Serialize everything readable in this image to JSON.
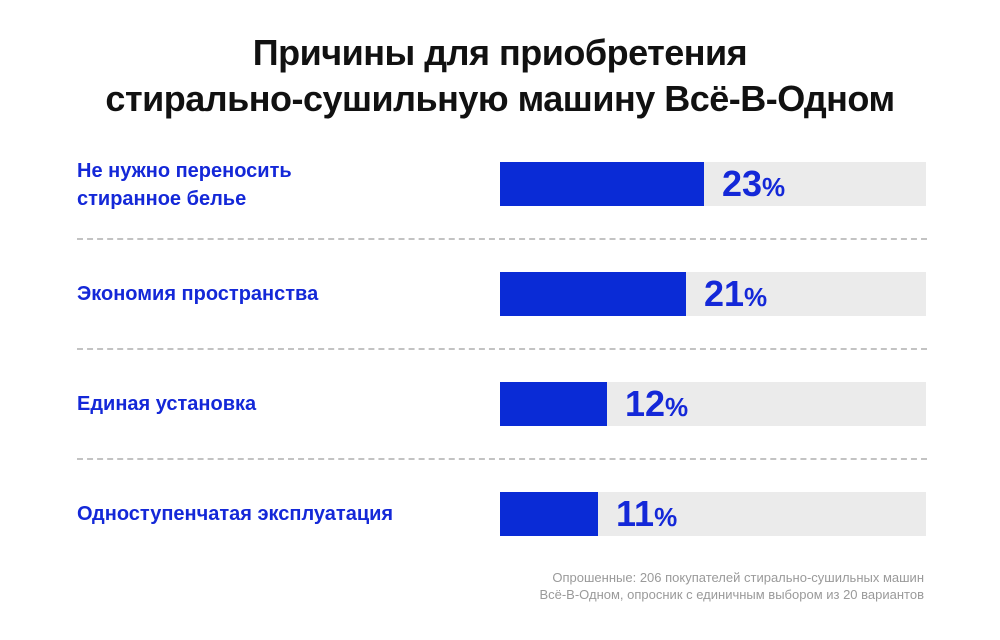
{
  "title": {
    "line1": "Причины для приобретения",
    "line2": "стирально-сушильную машину Всё-В-Одном"
  },
  "chart_data": {
    "type": "bar",
    "orientation": "horizontal",
    "title": "Причины для приобретения стирально-сушильную машину Всё-В-Одном",
    "categories": [
      [
        "Не нужно переносить",
        "стиранное белье"
      ],
      [
        "Экономия пространства"
      ],
      [
        "Единая установка"
      ],
      [
        "Одноступенчатая эксплуатация"
      ]
    ],
    "values": [
      23,
      21,
      12,
      11
    ],
    "value_labels": [
      "23",
      "21",
      "12",
      "11"
    ],
    "unit": "%",
    "xlim": [
      0,
      48
    ],
    "colors": {
      "fill": "#0a2bd6",
      "track": "#ebebeb",
      "text": "#1428d8"
    }
  },
  "footnote": {
    "line1": "Опрошенные: 206 покупателей стирально-сушильных машин",
    "line2": "Всё-В-Одном, опросник с единичным выбором из 20 вариантов"
  }
}
